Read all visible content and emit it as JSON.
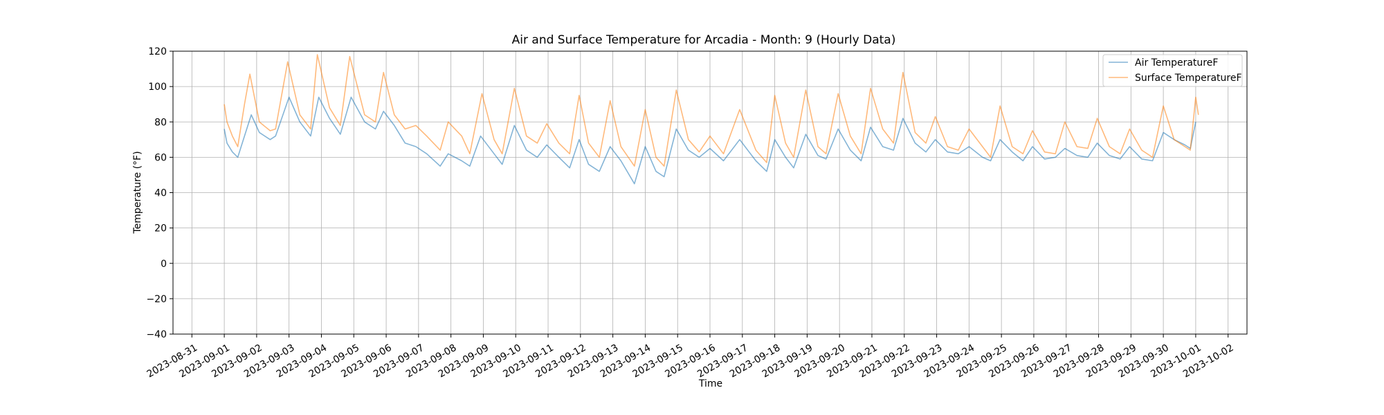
{
  "chart_data": {
    "type": "line",
    "title": "Air and Surface Temperature for Arcadia - Month: 9 (Hourly Data)",
    "xlabel": "Time",
    "ylabel": "Temperature (°F)",
    "xlim": [
      "2023-08-30T10:00",
      "2023-10-02T14:00"
    ],
    "ylim": [
      -40,
      120
    ],
    "yticks": [
      -40,
      -20,
      0,
      20,
      40,
      60,
      80,
      100,
      120
    ],
    "xticks": [
      "2023-08-31",
      "2023-09-01",
      "2023-09-02",
      "2023-09-03",
      "2023-09-04",
      "2023-09-05",
      "2023-09-06",
      "2023-09-07",
      "2023-09-08",
      "2023-09-09",
      "2023-09-10",
      "2023-09-11",
      "2023-09-12",
      "2023-09-13",
      "2023-09-14",
      "2023-09-15",
      "2023-09-16",
      "2023-09-17",
      "2023-09-18",
      "2023-09-19",
      "2023-09-20",
      "2023-09-21",
      "2023-09-22",
      "2023-09-23",
      "2023-09-24",
      "2023-09-25",
      "2023-09-26",
      "2023-09-27",
      "2023-09-28",
      "2023-09-29",
      "2023-09-30",
      "2023-10-01",
      "2023-10-02"
    ],
    "grid": true,
    "legend_position": "top-right",
    "series": [
      {
        "name": "Air TemperatureF",
        "color": "#1f77b4",
        "points": [
          [
            "2023-09-01T00:00",
            76
          ],
          [
            "2023-09-01T02:00",
            68
          ],
          [
            "2023-09-01T06:00",
            63
          ],
          [
            "2023-09-01T10:00",
            60
          ],
          [
            "2023-09-01T15:00",
            72
          ],
          [
            "2023-09-01T20:00",
            84
          ],
          [
            "2023-09-02T02:00",
            74
          ],
          [
            "2023-09-02T10:00",
            70
          ],
          [
            "2023-09-02T14:00",
            72
          ],
          [
            "2023-09-03T00:00",
            94
          ],
          [
            "2023-09-03T08:00",
            80
          ],
          [
            "2023-09-03T16:00",
            72
          ],
          [
            "2023-09-03T22:00",
            94
          ],
          [
            "2023-09-04T06:00",
            82
          ],
          [
            "2023-09-04T14:00",
            73
          ],
          [
            "2023-09-04T22:00",
            94
          ],
          [
            "2023-09-05T08:00",
            80
          ],
          [
            "2023-09-05T16:00",
            76
          ],
          [
            "2023-09-05T22:00",
            86
          ],
          [
            "2023-09-06T06:00",
            78
          ],
          [
            "2023-09-06T14:00",
            68
          ],
          [
            "2023-09-06T22:00",
            66
          ],
          [
            "2023-09-07T06:00",
            62
          ],
          [
            "2023-09-07T16:00",
            55
          ],
          [
            "2023-09-07T22:00",
            62
          ],
          [
            "2023-09-08T08:00",
            58
          ],
          [
            "2023-09-08T14:00",
            55
          ],
          [
            "2023-09-08T22:00",
            72
          ],
          [
            "2023-09-09T08:00",
            62
          ],
          [
            "2023-09-09T14:00",
            56
          ],
          [
            "2023-09-09T23:00",
            78
          ],
          [
            "2023-09-10T08:00",
            64
          ],
          [
            "2023-09-10T16:00",
            60
          ],
          [
            "2023-09-10T23:00",
            67
          ],
          [
            "2023-09-11T08:00",
            60
          ],
          [
            "2023-09-11T16:00",
            54
          ],
          [
            "2023-09-11T23:00",
            70
          ],
          [
            "2023-09-12T06:00",
            56
          ],
          [
            "2023-09-12T14:00",
            52
          ],
          [
            "2023-09-12T22:00",
            66
          ],
          [
            "2023-09-13T06:00",
            58
          ],
          [
            "2023-09-13T16:00",
            45
          ],
          [
            "2023-09-14T00:00",
            66
          ],
          [
            "2023-09-14T08:00",
            52
          ],
          [
            "2023-09-14T14:00",
            49
          ],
          [
            "2023-09-14T23:00",
            76
          ],
          [
            "2023-09-15T08:00",
            64
          ],
          [
            "2023-09-15T16:00",
            60
          ],
          [
            "2023-09-16T00:00",
            65
          ],
          [
            "2023-09-16T10:00",
            58
          ],
          [
            "2023-09-16T22:00",
            70
          ],
          [
            "2023-09-17T10:00",
            58
          ],
          [
            "2023-09-17T18:00",
            52
          ],
          [
            "2023-09-18T00:00",
            70
          ],
          [
            "2023-09-18T08:00",
            60
          ],
          [
            "2023-09-18T14:00",
            54
          ],
          [
            "2023-09-18T23:00",
            73
          ],
          [
            "2023-09-19T08:00",
            61
          ],
          [
            "2023-09-19T14:00",
            59
          ],
          [
            "2023-09-19T23:00",
            76
          ],
          [
            "2023-09-20T08:00",
            64
          ],
          [
            "2023-09-20T16:00",
            58
          ],
          [
            "2023-09-20T23:00",
            77
          ],
          [
            "2023-09-21T08:00",
            66
          ],
          [
            "2023-09-21T16:00",
            64
          ],
          [
            "2023-09-21T23:00",
            82
          ],
          [
            "2023-09-22T08:00",
            68
          ],
          [
            "2023-09-22T16:00",
            63
          ],
          [
            "2023-09-22T23:00",
            70
          ],
          [
            "2023-09-23T08:00",
            63
          ],
          [
            "2023-09-23T16:00",
            62
          ],
          [
            "2023-09-24T00:00",
            66
          ],
          [
            "2023-09-24T10:00",
            60
          ],
          [
            "2023-09-24T16:00",
            58
          ],
          [
            "2023-09-24T23:00",
            70
          ],
          [
            "2023-09-25T08:00",
            63
          ],
          [
            "2023-09-25T16:00",
            58
          ],
          [
            "2023-09-25T23:00",
            66
          ],
          [
            "2023-09-26T08:00",
            59
          ],
          [
            "2023-09-26T16:00",
            60
          ],
          [
            "2023-09-26T23:00",
            65
          ],
          [
            "2023-09-27T08:00",
            61
          ],
          [
            "2023-09-27T16:00",
            60
          ],
          [
            "2023-09-27T23:00",
            68
          ],
          [
            "2023-09-28T08:00",
            61
          ],
          [
            "2023-09-28T16:00",
            59
          ],
          [
            "2023-09-28T23:00",
            66
          ],
          [
            "2023-09-29T08:00",
            59
          ],
          [
            "2023-09-29T16:00",
            58
          ],
          [
            "2023-09-30T00:00",
            74
          ],
          [
            "2023-09-30T08:00",
            70
          ],
          [
            "2023-09-30T16:00",
            67
          ],
          [
            "2023-09-30T20:00",
            65
          ],
          [
            "2023-10-01T00:00",
            80
          ]
        ]
      },
      {
        "name": "Surface TemperatureF",
        "color": "#ff7f0e",
        "points": [
          [
            "2023-09-01T00:00",
            90
          ],
          [
            "2023-09-01T02:00",
            80
          ],
          [
            "2023-09-01T06:00",
            72
          ],
          [
            "2023-09-01T10:00",
            66
          ],
          [
            "2023-09-01T15:00",
            90
          ],
          [
            "2023-09-01T19:00",
            107
          ],
          [
            "2023-09-02T02:00",
            80
          ],
          [
            "2023-09-02T10:00",
            75
          ],
          [
            "2023-09-02T14:00",
            76
          ],
          [
            "2023-09-02T23:00",
            114
          ],
          [
            "2023-09-03T08:00",
            84
          ],
          [
            "2023-09-03T16:00",
            76
          ],
          [
            "2023-09-03T21:00",
            118
          ],
          [
            "2023-09-04T06:00",
            88
          ],
          [
            "2023-09-04T14:00",
            78
          ],
          [
            "2023-09-04T21:00",
            117
          ],
          [
            "2023-09-05T08:00",
            84
          ],
          [
            "2023-09-05T16:00",
            80
          ],
          [
            "2023-09-05T22:00",
            108
          ],
          [
            "2023-09-06T06:00",
            84
          ],
          [
            "2023-09-06T14:00",
            76
          ],
          [
            "2023-09-06T22:00",
            78
          ],
          [
            "2023-09-07T06:00",
            72
          ],
          [
            "2023-09-07T16:00",
            64
          ],
          [
            "2023-09-07T22:00",
            80
          ],
          [
            "2023-09-08T08:00",
            72
          ],
          [
            "2023-09-08T14:00",
            62
          ],
          [
            "2023-09-08T23:00",
            96
          ],
          [
            "2023-09-09T08:00",
            70
          ],
          [
            "2023-09-09T14:00",
            62
          ],
          [
            "2023-09-09T23:00",
            99
          ],
          [
            "2023-09-10T08:00",
            72
          ],
          [
            "2023-09-10T16:00",
            68
          ],
          [
            "2023-09-10T23:00",
            79
          ],
          [
            "2023-09-11T08:00",
            68
          ],
          [
            "2023-09-11T16:00",
            62
          ],
          [
            "2023-09-11T23:00",
            95
          ],
          [
            "2023-09-12T06:00",
            68
          ],
          [
            "2023-09-12T14:00",
            60
          ],
          [
            "2023-09-12T22:00",
            92
          ],
          [
            "2023-09-13T06:00",
            66
          ],
          [
            "2023-09-13T16:00",
            55
          ],
          [
            "2023-09-14T00:00",
            87
          ],
          [
            "2023-09-14T08:00",
            60
          ],
          [
            "2023-09-14T14:00",
            55
          ],
          [
            "2023-09-14T23:00",
            98
          ],
          [
            "2023-09-15T08:00",
            70
          ],
          [
            "2023-09-15T16:00",
            63
          ],
          [
            "2023-09-16T00:00",
            72
          ],
          [
            "2023-09-16T10:00",
            62
          ],
          [
            "2023-09-16T22:00",
            87
          ],
          [
            "2023-09-17T10:00",
            64
          ],
          [
            "2023-09-17T18:00",
            57
          ],
          [
            "2023-09-18T00:00",
            95
          ],
          [
            "2023-09-18T08:00",
            68
          ],
          [
            "2023-09-18T14:00",
            60
          ],
          [
            "2023-09-18T23:00",
            98
          ],
          [
            "2023-09-19T08:00",
            66
          ],
          [
            "2023-09-19T14:00",
            62
          ],
          [
            "2023-09-19T23:00",
            96
          ],
          [
            "2023-09-20T08:00",
            72
          ],
          [
            "2023-09-20T16:00",
            62
          ],
          [
            "2023-09-20T23:00",
            99
          ],
          [
            "2023-09-21T08:00",
            76
          ],
          [
            "2023-09-21T16:00",
            68
          ],
          [
            "2023-09-21T23:00",
            108
          ],
          [
            "2023-09-22T08:00",
            74
          ],
          [
            "2023-09-22T16:00",
            68
          ],
          [
            "2023-09-22T23:00",
            83
          ],
          [
            "2023-09-23T08:00",
            66
          ],
          [
            "2023-09-23T16:00",
            64
          ],
          [
            "2023-09-24T00:00",
            76
          ],
          [
            "2023-09-24T10:00",
            66
          ],
          [
            "2023-09-24T16:00",
            60
          ],
          [
            "2023-09-24T23:00",
            89
          ],
          [
            "2023-09-25T08:00",
            66
          ],
          [
            "2023-09-25T16:00",
            62
          ],
          [
            "2023-09-25T23:00",
            75
          ],
          [
            "2023-09-26T08:00",
            63
          ],
          [
            "2023-09-26T16:00",
            62
          ],
          [
            "2023-09-26T23:00",
            80
          ],
          [
            "2023-09-27T08:00",
            66
          ],
          [
            "2023-09-27T16:00",
            65
          ],
          [
            "2023-09-27T23:00",
            82
          ],
          [
            "2023-09-28T08:00",
            66
          ],
          [
            "2023-09-28T16:00",
            62
          ],
          [
            "2023-09-28T23:00",
            76
          ],
          [
            "2023-09-29T08:00",
            64
          ],
          [
            "2023-09-29T16:00",
            60
          ],
          [
            "2023-09-30T00:00",
            89
          ],
          [
            "2023-09-30T08:00",
            70
          ],
          [
            "2023-09-30T16:00",
            66
          ],
          [
            "2023-09-30T20:00",
            64
          ],
          [
            "2023-10-01T00:00",
            94
          ],
          [
            "2023-10-01T02:00",
            84
          ]
        ]
      }
    ]
  }
}
